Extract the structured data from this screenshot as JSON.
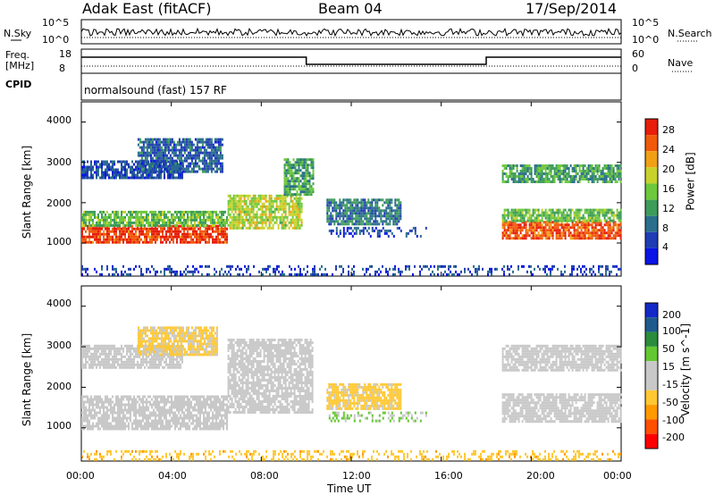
{
  "header": {
    "radar": "Adak East (fitACF)",
    "beam": "Beam 04",
    "date": "17/Sep/2014"
  },
  "status_panels": {
    "nsky": {
      "label": "N.Sky",
      "yticks": [
        "10^5",
        "10^0"
      ]
    },
    "nsearch": {
      "label": "N.Search",
      "yticks": [
        "10^5",
        "10^0"
      ]
    },
    "freq": {
      "label_line1": "Freq.",
      "label_line2": "[MHz]",
      "yticks": [
        "18",
        "8"
      ]
    },
    "nave": {
      "label": "Nave",
      "yticks": [
        "60",
        "0"
      ]
    },
    "cpid": {
      "label": "CPID",
      "value": "normalsound (fast) 157 RF"
    }
  },
  "colors": {
    "power": [
      "#0a14e6",
      "#1f3cb4",
      "#2a6e8c",
      "#3d9c5a",
      "#6ec83c",
      "#c8d22a",
      "#f0a014",
      "#f05a0a",
      "#e61e0a"
    ],
    "velocity": [
      "#ff0000",
      "#ff5000",
      "#ff9a00",
      "#ffc832",
      "#c8c8c8",
      "#c8c8c8",
      "#64c832",
      "#2a8c3c",
      "#1f5a8c",
      "#1428c8"
    ],
    "ground_scatter": "#c8c8c8"
  },
  "chart_data": {
    "type": "heatmap",
    "xlabel": "Time UT",
    "xticks": [
      "00:00",
      "04:00",
      "08:00",
      "12:00",
      "16:00",
      "20:00",
      "00:00"
    ],
    "xlim_hours": [
      0,
      24
    ],
    "ylabel": "Slant Range [km]",
    "yticks": [
      "1000",
      "2000",
      "3000",
      "4000"
    ],
    "ylim_km": [
      180,
      4500
    ],
    "panels": [
      {
        "name": "power",
        "colorbar_label": "Power [dB]",
        "colorbar_ticks": [
          "28",
          "24",
          "20",
          "16",
          "12",
          "8",
          "4"
        ],
        "range": [
          0,
          30
        ],
        "regions": [
          {
            "t0": 0.0,
            "t1": 6.5,
            "r0": 1050,
            "r1": 1450,
            "value": 27
          },
          {
            "t0": 0.0,
            "t1": 6.5,
            "r0": 1450,
            "r1": 1800,
            "value": 14
          },
          {
            "t0": 6.5,
            "t1": 9.8,
            "r0": 1400,
            "r1": 2200,
            "value": 17
          },
          {
            "t0": 9.0,
            "t1": 10.3,
            "r0": 2200,
            "r1": 3100,
            "value": 12
          },
          {
            "t0": 0.0,
            "t1": 4.5,
            "r0": 2600,
            "r1": 3050,
            "value": 6
          },
          {
            "t0": 2.5,
            "t1": 6.3,
            "r0": 2800,
            "r1": 3600,
            "value": 7
          },
          {
            "t0": 10.9,
            "t1": 14.2,
            "r0": 1500,
            "r1": 2100,
            "value": 9
          },
          {
            "t0": 11.0,
            "t1": 15.3,
            "r0": 1150,
            "r1": 1400,
            "value": 5
          },
          {
            "t0": 18.7,
            "t1": 24.0,
            "r0": 1150,
            "r1": 1550,
            "value": 26
          },
          {
            "t0": 18.7,
            "t1": 24.0,
            "r0": 1550,
            "r1": 1850,
            "value": 14
          },
          {
            "t0": 18.7,
            "t1": 24.0,
            "r0": 2500,
            "r1": 2950,
            "value": 12
          },
          {
            "t0": 0.0,
            "t1": 24.0,
            "r0": 200,
            "r1": 450,
            "value": 5
          }
        ]
      },
      {
        "name": "velocity",
        "colorbar_label": "Velocity [m s^-1]",
        "colorbar_ticks": [
          "200",
          "100",
          "50",
          "15",
          "-15",
          "-50",
          "-100",
          "-200"
        ],
        "range": [
          -250,
          250
        ],
        "regions": [
          {
            "t0": 0.0,
            "t1": 6.5,
            "r0": 1000,
            "r1": 1800,
            "value": 0
          },
          {
            "t0": 6.5,
            "t1": 10.3,
            "r0": 1400,
            "r1": 3200,
            "value": 0
          },
          {
            "t0": 0.0,
            "t1": 4.5,
            "r0": 2500,
            "r1": 3050,
            "value": 0
          },
          {
            "t0": 2.5,
            "t1": 6.0,
            "r0": 2800,
            "r1": 3500,
            "value": -60
          },
          {
            "t0": 10.9,
            "t1": 14.2,
            "r0": 1500,
            "r1": 2100,
            "value": -70
          },
          {
            "t0": 11.0,
            "t1": 15.3,
            "r0": 1150,
            "r1": 1400,
            "value": 60
          },
          {
            "t0": 18.7,
            "t1": 24.0,
            "r0": 1150,
            "r1": 1850,
            "value": 0
          },
          {
            "t0": 18.7,
            "t1": 24.0,
            "r0": 2400,
            "r1": 3050,
            "value": 0
          },
          {
            "t0": 0.0,
            "t1": 24.0,
            "r0": 200,
            "r1": 450,
            "value": -80
          }
        ]
      }
    ]
  }
}
